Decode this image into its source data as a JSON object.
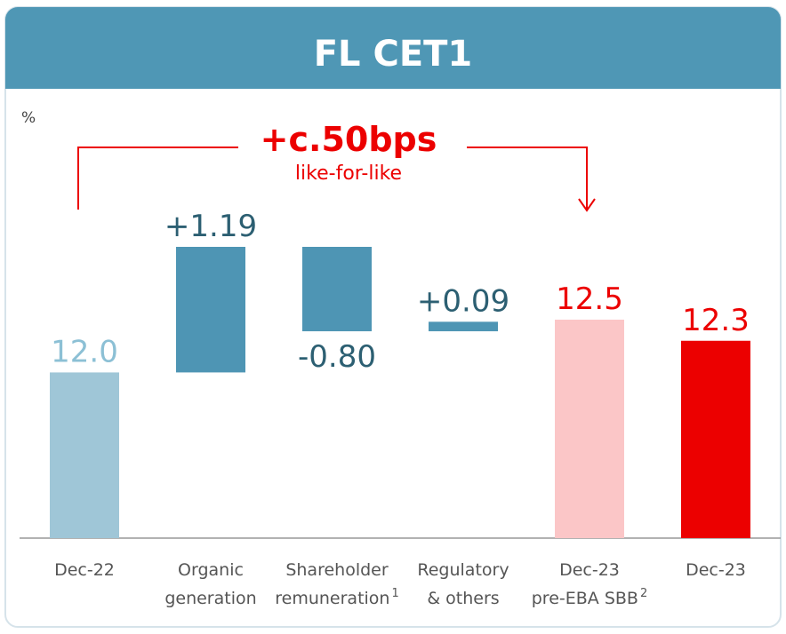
{
  "chart_data": {
    "type": "waterfall",
    "title": "FL CET1",
    "unit_label": "%",
    "annotation": "+c.50bps",
    "annotation_sub": "like-for-like",
    "categories": [
      [
        "Dec-22"
      ],
      [
        "Organic",
        "generation"
      ],
      [
        "Shareholder",
        "remuneration"
      ],
      [
        "Regulatory",
        "& others"
      ],
      [
        "Dec-23",
        "pre-EBA SBB"
      ],
      [
        "Dec-23"
      ]
    ],
    "footnotes": {
      "2": "1",
      "4": "2"
    },
    "values": [
      12.0,
      1.19,
      -0.8,
      0.09,
      12.5,
      12.3
    ],
    "value_labels": [
      "12.0",
      "+1.19",
      "-0.80",
      "+0.09",
      "12.5",
      "12.3"
    ],
    "bar_kinds": [
      "total",
      "delta",
      "delta",
      "delta",
      "total",
      "total"
    ],
    "colors": [
      "#9fc6d7",
      "#4e95b4",
      "#4e95b4",
      "#4e95b4",
      "#fbc6c7",
      "#ec0000"
    ],
    "label_colors": [
      "#8cc0d5",
      "#2c5f72",
      "#2c5f72",
      "#2c5f72",
      "#ec0000",
      "#ec0000"
    ],
    "ylim": [
      10.43,
      12.5
    ]
  }
}
